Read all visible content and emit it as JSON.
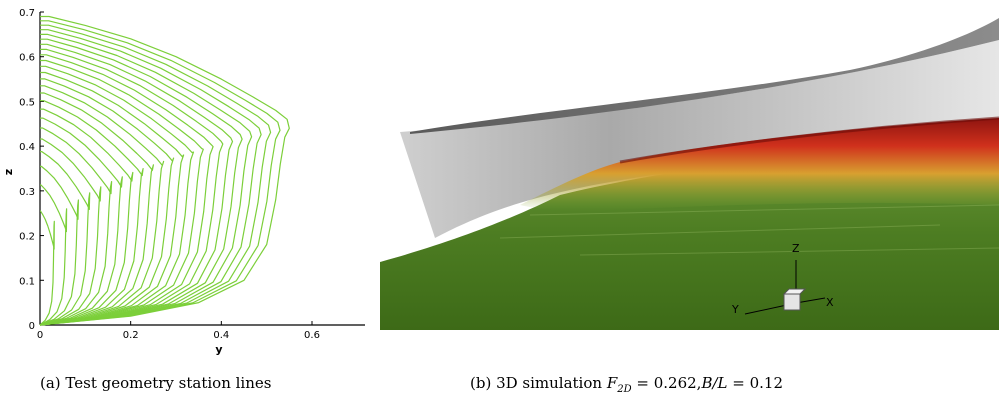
{
  "figure_a": {
    "xlabel": "y",
    "ylabel": "z",
    "x_ticks": [
      "0",
      "0.2",
      "0.4",
      "0.6"
    ],
    "y_ticks": [
      "0",
      "0.1",
      "0.2",
      "0.3",
      "0.4",
      "0.5",
      "0.6",
      "0.7"
    ],
    "line_color": "#7ccf3a",
    "caption": "(a) Test geometry station lines"
  },
  "figure_b": {
    "caption_prefix": "(b) 3D simulation ",
    "caption_var": "F",
    "caption_sub": "2D",
    "caption_mid": " = 0.262,",
    "caption_ratio": "B/L",
    "caption_end": " = 0.12",
    "triad": {
      "x": "X",
      "y": "Y",
      "z": "Z"
    },
    "hull_color": "#b8b8b8",
    "water_color": "#4a7a1e",
    "wave_color": "#c8281e"
  },
  "chart_data": {
    "type": "line",
    "xlabel": "y",
    "ylabel": "z",
    "xlim": [
      0,
      0.72
    ],
    "ylim": [
      0,
      0.7
    ],
    "n_stations": 24,
    "outer_station": {
      "x": [
        0.0,
        0.02,
        0.1,
        0.2,
        0.3,
        0.4,
        0.47,
        0.52,
        0.545,
        0.55,
        0.54,
        0.53,
        0.52,
        0.5,
        0.45,
        0.35,
        0.2,
        0.05,
        0.0
      ],
      "y": [
        0.69,
        0.69,
        0.67,
        0.64,
        0.6,
        0.55,
        0.51,
        0.48,
        0.46,
        0.44,
        0.42,
        0.36,
        0.28,
        0.18,
        0.1,
        0.05,
        0.02,
        0.005,
        0.0
      ]
    }
  }
}
